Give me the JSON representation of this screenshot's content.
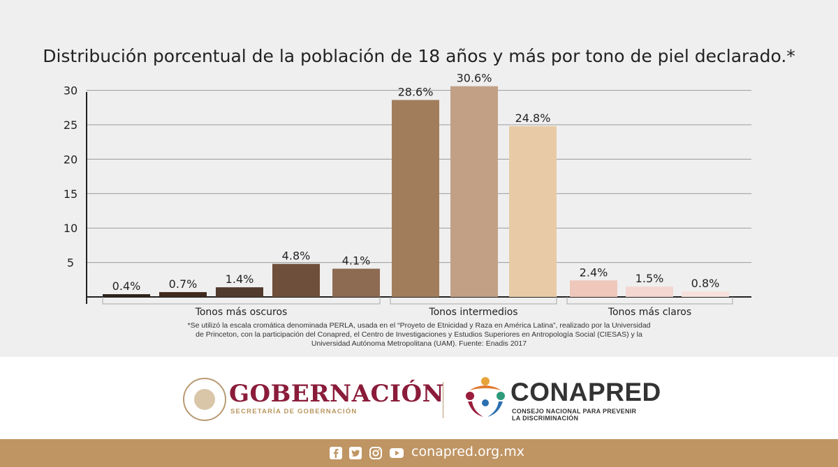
{
  "chart_data": {
    "type": "bar",
    "title": "Distribución porcentual de la población de 18 años y más por tono de piel declarado.*",
    "yticks": [
      5,
      10,
      15,
      20,
      25,
      30
    ],
    "ylim": [
      0,
      30
    ],
    "grid": true,
    "groups": [
      {
        "label": "Tonos más oscuros",
        "bars": [
          {
            "value": 0.4,
            "label": "0.4%",
            "color": "#2f221b"
          },
          {
            "value": 0.7,
            "label": "0.7%",
            "color": "#3f2a1d"
          },
          {
            "value": 1.4,
            "label": "1.4%",
            "color": "#513b2e"
          },
          {
            "value": 4.8,
            "label": "4.8%",
            "color": "#6e4f3b"
          },
          {
            "value": 4.1,
            "label": "4.1%",
            "color": "#8d6a52"
          }
        ]
      },
      {
        "label": "Tonos intermedios",
        "bars": [
          {
            "value": 28.6,
            "label": "28.6%",
            "color": "#a27d5c"
          },
          {
            "value": 30.6,
            "label": "30.6%",
            "color": "#c2a085"
          },
          {
            "value": 24.8,
            "label": "24.8%",
            "color": "#e8cba6"
          }
        ]
      },
      {
        "label": "Tonos más claros",
        "bars": [
          {
            "value": 2.4,
            "label": "2.4%",
            "color": "#efc8bb"
          },
          {
            "value": 1.5,
            "label": "1.5%",
            "color": "#f3d7d0"
          },
          {
            "value": 0.8,
            "label": "0.8%",
            "color": "#f6e1dd"
          }
        ]
      }
    ]
  },
  "footnote": {
    "line1": "*Se utilizó la escala cromática denominada PERLA, usada en el “Proyeto de Etnicidad y Raza en América Latina”, realizado por la Universidad",
    "line2": "de Princeton, con la participación del Conapred, el Centro de Investigaciones y Estudios Superiores en Antropología Social (CIESAS) y la",
    "line3": "Universidad Autónoma Metropolitana (UAM). Fuente: Enadis 2017"
  },
  "logos": {
    "gob_title": "GOBERNACIÓN",
    "gob_sub": "SECRETARÍA DE GOBERNACIÓN",
    "con_title": "CONAPRED",
    "con_sub1": "CONSEJO NACIONAL PARA PREVENIR",
    "con_sub2": "LA DISCRIMINACIÓN"
  },
  "footer": {
    "site": "conapred.org.mx",
    "icons": [
      "facebook-icon",
      "twitter-icon",
      "instagram-icon",
      "youtube-icon"
    ]
  }
}
